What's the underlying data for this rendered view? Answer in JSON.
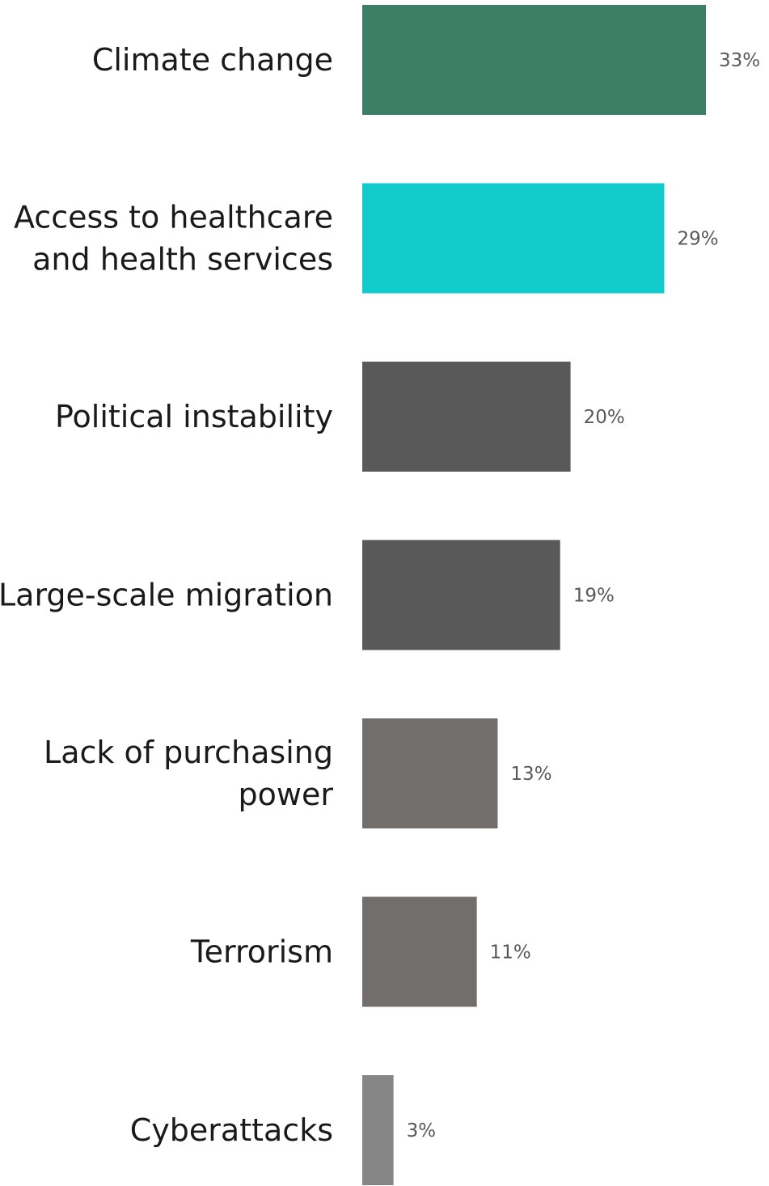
{
  "chart_data": {
    "type": "bar",
    "orientation": "horizontal",
    "categories": [
      [
        "Climate change"
      ],
      [
        "Access to healthcare",
        "and health services"
      ],
      [
        "Political instability"
      ],
      [
        "Large-scale migration"
      ],
      [
        "Lack of purchasing",
        "power"
      ],
      [
        "Terrorism"
      ],
      [
        "Cyberattacks"
      ]
    ],
    "values": [
      33,
      29,
      20,
      19,
      13,
      11,
      3
    ],
    "value_labels": [
      "33%",
      "29%",
      "20%",
      "19%",
      "13%",
      "11%",
      "3%"
    ],
    "colors": [
      "#3d7f66",
      "#12cccc",
      "#595959",
      "#595959",
      "#726e6c",
      "#726e6c",
      "#868686"
    ],
    "title": "",
    "xlabel": "",
    "ylabel": "",
    "xlim": [
      0,
      33
    ],
    "grid": false,
    "legend": "none"
  }
}
